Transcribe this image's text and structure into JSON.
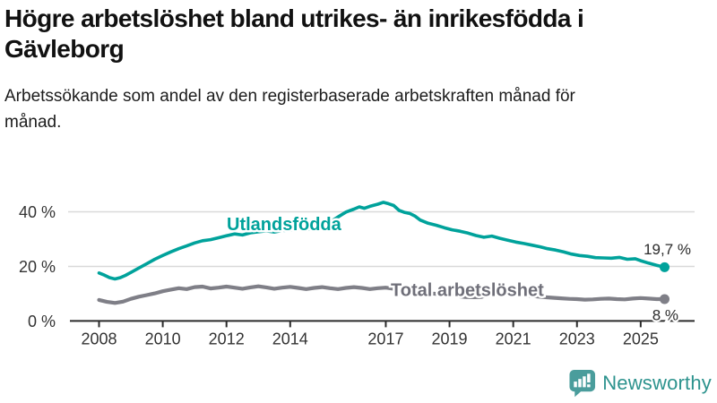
{
  "header": {
    "title": "Högre arbetslöshet bland utrikes- än inrikesfödda i Gävleborg",
    "subtitle": "Arbetssökande som andel av den registerbaserade arbetskraften månad för månad."
  },
  "footer": {
    "brand": "Newsworthy",
    "logo_icon": "newsworthy-bubble-bar-chart-icon"
  },
  "colors": {
    "accent_teal": "#00a29b",
    "line_gray": "#7f7f87",
    "gray_label": "#6f6f79",
    "axis": "#2b2b2b",
    "grid": "#d9d9d9",
    "tick_text": "#333333",
    "brand_teal": "#2d938e",
    "logo_teal": "#4a9d9c"
  },
  "chart_data": {
    "type": "line",
    "title": "Högre arbetslöshet bland utrikes- än inrikesfödda i Gävleborg",
    "xlabel": "",
    "ylabel": "",
    "grid": "horizontal",
    "x_range": [
      2008,
      2025.75
    ],
    "ylim": [
      0,
      45
    ],
    "y_axis": {
      "ticks": [
        {
          "label": "0 %",
          "value": 0
        },
        {
          "label": "20 %",
          "value": 20
        },
        {
          "label": "40 %",
          "value": 40
        }
      ]
    },
    "x_axis": {
      "ticks": [
        {
          "label": "2008",
          "year": 2008
        },
        {
          "label": "2010",
          "year": 2010
        },
        {
          "label": "2012",
          "year": 2012
        },
        {
          "label": "2014",
          "year": 2014
        },
        {
          "label": "2017",
          "year": 2017
        },
        {
          "label": "2019",
          "year": 2019
        },
        {
          "label": "2021",
          "year": 2021
        },
        {
          "label": "2023",
          "year": 2023
        },
        {
          "label": "2025",
          "year": 2025
        }
      ]
    },
    "series": [
      {
        "name": "Utlandsfödda",
        "color": "#00a29b",
        "label_color": "#00a29b",
        "end_label": "19,7 %",
        "end_value": 19.7,
        "points": [
          [
            2008.0,
            17.6
          ],
          [
            2008.17,
            16.8
          ],
          [
            2008.33,
            15.9
          ],
          [
            2008.5,
            15.4
          ],
          [
            2008.67,
            15.9
          ],
          [
            2008.83,
            16.7
          ],
          [
            2009.0,
            17.8
          ],
          [
            2009.25,
            19.4
          ],
          [
            2009.5,
            21.0
          ],
          [
            2009.75,
            22.6
          ],
          [
            2010.0,
            24.0
          ],
          [
            2010.25,
            25.3
          ],
          [
            2010.5,
            26.5
          ],
          [
            2010.75,
            27.5
          ],
          [
            2011.0,
            28.6
          ],
          [
            2011.25,
            29.4
          ],
          [
            2011.5,
            29.8
          ],
          [
            2011.75,
            30.5
          ],
          [
            2012.0,
            31.2
          ],
          [
            2012.25,
            31.9
          ],
          [
            2012.5,
            31.5
          ],
          [
            2012.75,
            32.3
          ],
          [
            2013.0,
            32.7
          ],
          [
            2013.25,
            33.0
          ],
          [
            2013.5,
            32.6
          ],
          [
            2013.75,
            33.1
          ],
          [
            2014.0,
            33.3
          ],
          [
            2014.25,
            33.9
          ],
          [
            2014.5,
            33.5
          ],
          [
            2014.75,
            34.1
          ],
          [
            2015.0,
            34.7
          ],
          [
            2015.25,
            36.2
          ],
          [
            2015.5,
            38.1
          ],
          [
            2015.75,
            39.9
          ],
          [
            2016.0,
            41.0
          ],
          [
            2016.17,
            41.8
          ],
          [
            2016.33,
            41.3
          ],
          [
            2016.5,
            42.0
          ],
          [
            2016.75,
            42.8
          ],
          [
            2016.92,
            43.5
          ],
          [
            2017.08,
            43.0
          ],
          [
            2017.25,
            42.3
          ],
          [
            2017.42,
            40.5
          ],
          [
            2017.58,
            39.8
          ],
          [
            2017.75,
            39.4
          ],
          [
            2017.92,
            38.4
          ],
          [
            2018.08,
            37.0
          ],
          [
            2018.33,
            35.8
          ],
          [
            2018.58,
            35.1
          ],
          [
            2018.83,
            34.2
          ],
          [
            2019.08,
            33.4
          ],
          [
            2019.33,
            32.9
          ],
          [
            2019.58,
            32.2
          ],
          [
            2019.83,
            31.3
          ],
          [
            2020.08,
            30.7
          ],
          [
            2020.33,
            31.1
          ],
          [
            2020.58,
            30.3
          ],
          [
            2020.83,
            29.6
          ],
          [
            2021.08,
            28.9
          ],
          [
            2021.33,
            28.4
          ],
          [
            2021.58,
            27.8
          ],
          [
            2021.83,
            27.2
          ],
          [
            2022.08,
            26.5
          ],
          [
            2022.33,
            26.0
          ],
          [
            2022.58,
            25.3
          ],
          [
            2022.83,
            24.5
          ],
          [
            2023.08,
            24.0
          ],
          [
            2023.33,
            23.7
          ],
          [
            2023.58,
            23.2
          ],
          [
            2023.83,
            23.1
          ],
          [
            2024.08,
            23.0
          ],
          [
            2024.33,
            23.3
          ],
          [
            2024.58,
            22.6
          ],
          [
            2024.83,
            22.8
          ],
          [
            2025.0,
            22.1
          ],
          [
            2025.25,
            21.2
          ],
          [
            2025.5,
            20.4
          ],
          [
            2025.75,
            19.7
          ]
        ]
      },
      {
        "name": "Total arbetslöshet",
        "color": "#7f7f87",
        "label_color": "#6f6f79",
        "end_label": "8 %",
        "end_value": 8.0,
        "points": [
          [
            2008.0,
            7.7
          ],
          [
            2008.25,
            7.0
          ],
          [
            2008.5,
            6.6
          ],
          [
            2008.75,
            7.1
          ],
          [
            2009.0,
            8.1
          ],
          [
            2009.25,
            8.9
          ],
          [
            2009.5,
            9.5
          ],
          [
            2009.75,
            10.1
          ],
          [
            2010.0,
            10.9
          ],
          [
            2010.25,
            11.5
          ],
          [
            2010.5,
            12.0
          ],
          [
            2010.75,
            11.7
          ],
          [
            2011.0,
            12.4
          ],
          [
            2011.25,
            12.6
          ],
          [
            2011.5,
            11.9
          ],
          [
            2011.75,
            12.2
          ],
          [
            2012.0,
            12.6
          ],
          [
            2012.25,
            12.2
          ],
          [
            2012.5,
            11.8
          ],
          [
            2012.75,
            12.3
          ],
          [
            2013.0,
            12.7
          ],
          [
            2013.25,
            12.3
          ],
          [
            2013.5,
            11.8
          ],
          [
            2013.75,
            12.2
          ],
          [
            2014.0,
            12.5
          ],
          [
            2014.25,
            12.1
          ],
          [
            2014.5,
            11.7
          ],
          [
            2014.75,
            12.1
          ],
          [
            2015.0,
            12.4
          ],
          [
            2015.25,
            12.0
          ],
          [
            2015.5,
            11.7
          ],
          [
            2015.75,
            12.1
          ],
          [
            2016.0,
            12.4
          ],
          [
            2016.25,
            12.1
          ],
          [
            2016.5,
            11.7
          ],
          [
            2016.75,
            12.0
          ],
          [
            2017.0,
            12.2
          ],
          [
            2017.25,
            11.8
          ],
          [
            2017.5,
            11.3
          ],
          [
            2017.75,
            11.0
          ],
          [
            2018.0,
            10.8
          ],
          [
            2018.25,
            10.4
          ],
          [
            2018.5,
            10.0
          ],
          [
            2018.75,
            9.7
          ],
          [
            2019.0,
            9.4
          ],
          [
            2019.25,
            9.1
          ],
          [
            2019.5,
            8.8
          ],
          [
            2019.75,
            8.7
          ],
          [
            2020.0,
            8.8
          ],
          [
            2020.25,
            9.8
          ],
          [
            2020.5,
            10.4
          ],
          [
            2020.75,
            10.2
          ],
          [
            2021.0,
            10.0
          ],
          [
            2021.25,
            9.7
          ],
          [
            2021.5,
            9.3
          ],
          [
            2021.75,
            9.0
          ],
          [
            2022.0,
            8.7
          ],
          [
            2022.25,
            8.5
          ],
          [
            2022.5,
            8.3
          ],
          [
            2022.75,
            8.1
          ],
          [
            2023.0,
            8.0
          ],
          [
            2023.25,
            7.8
          ],
          [
            2023.5,
            7.9
          ],
          [
            2023.75,
            8.1
          ],
          [
            2024.0,
            8.2
          ],
          [
            2024.25,
            8.0
          ],
          [
            2024.5,
            7.9
          ],
          [
            2024.75,
            8.2
          ],
          [
            2025.0,
            8.4
          ],
          [
            2025.25,
            8.2
          ],
          [
            2025.5,
            8.0
          ],
          [
            2025.75,
            8.0
          ]
        ]
      }
    ]
  }
}
